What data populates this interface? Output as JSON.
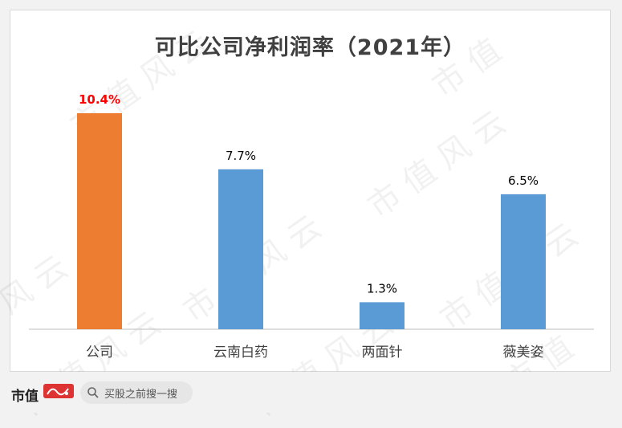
{
  "chart_data": {
    "type": "bar",
    "title": "可比公司净利润率（2021年）",
    "categories": [
      "公司",
      "云南白药",
      "两面针",
      "薇美姿"
    ],
    "values": [
      10.4,
      7.7,
      1.3,
      6.5
    ],
    "value_labels": [
      "10.4%",
      "7.7%",
      "1.3%",
      "6.5%"
    ],
    "colors": [
      "#ED7D31",
      "#5B9BD5",
      "#5B9BD5",
      "#5B9BD5"
    ],
    "label_colors": [
      "#FF0000",
      "#000000",
      "#000000",
      "#000000"
    ],
    "ylim": [
      0,
      10.4
    ],
    "grid": false,
    "legend": "none"
  },
  "footer": {
    "brand": "市值",
    "search_placeholder": "买股之前搜一搜"
  }
}
